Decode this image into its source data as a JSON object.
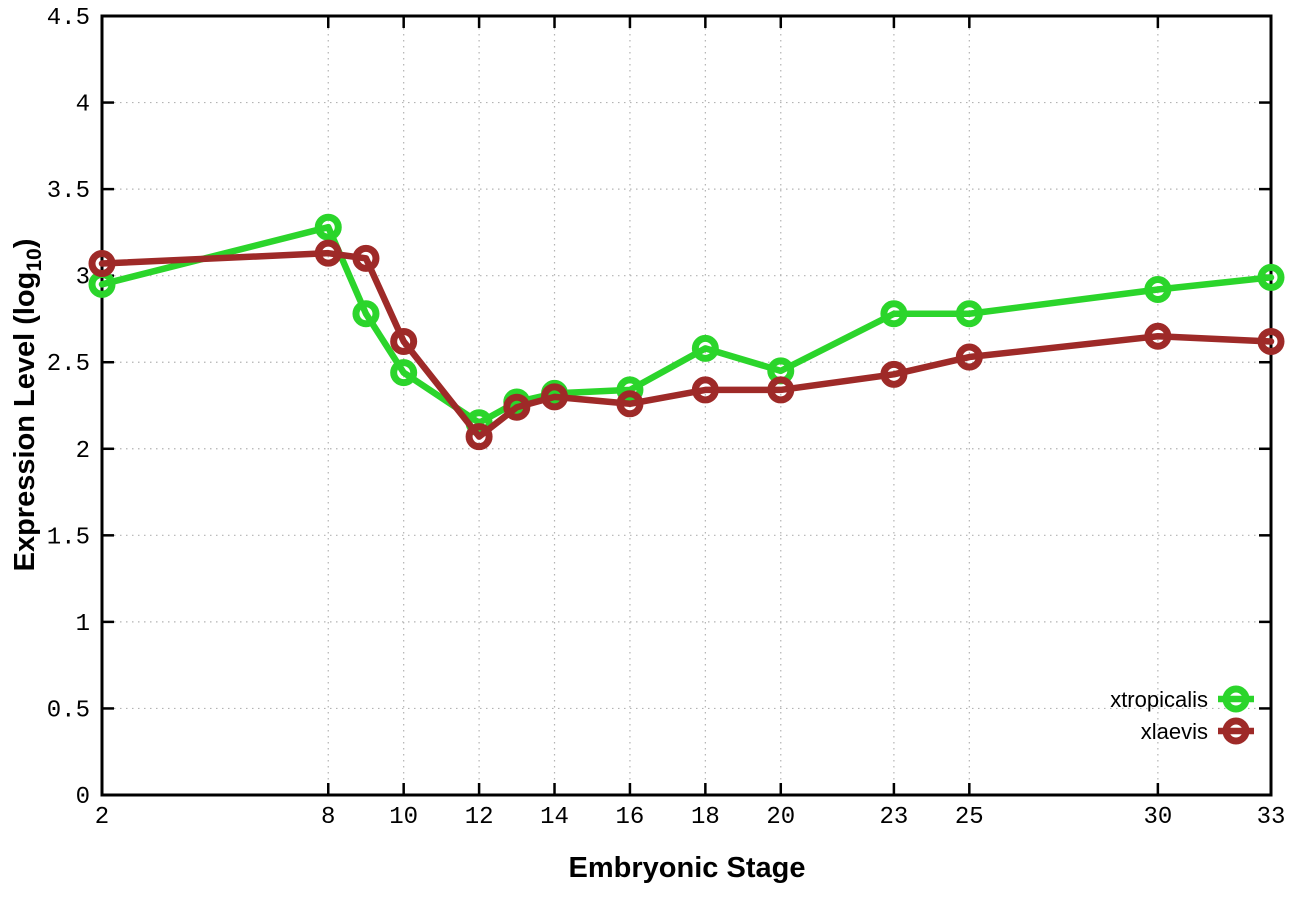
{
  "chart_data": {
    "type": "line",
    "title": "",
    "xlabel": "Embryonic Stage",
    "ylabel": "Expression Level (log10)",
    "ylabel_main": "Expression Level (log",
    "ylabel_sub": "10",
    "ylabel_close": ")",
    "xlim": [
      2,
      33
    ],
    "ylim": [
      0,
      4.5
    ],
    "xticks": [
      2,
      8,
      10,
      12,
      14,
      16,
      18,
      20,
      23,
      25,
      30,
      33
    ],
    "yticks": [
      0,
      0.5,
      1,
      1.5,
      2,
      2.5,
      3,
      3.5,
      4,
      4.5
    ],
    "grid": true,
    "legend_position": "bottom-right",
    "x": [
      2,
      8,
      9,
      10,
      12,
      13,
      14,
      16,
      18,
      20,
      23,
      25,
      30,
      33
    ],
    "series": [
      {
        "name": "xtropicalis",
        "color": "#2bd52b",
        "values": [
          2.95,
          3.28,
          2.78,
          2.44,
          2.15,
          2.27,
          2.32,
          2.34,
          2.58,
          2.45,
          2.78,
          2.78,
          2.92,
          2.99
        ]
      },
      {
        "name": "xlaevis",
        "color": "#9e2a28",
        "values": [
          3.07,
          3.13,
          3.1,
          2.62,
          2.07,
          2.24,
          2.3,
          2.26,
          2.34,
          2.34,
          2.43,
          2.53,
          2.65,
          2.62
        ]
      }
    ],
    "colors": {
      "axis": "#000000",
      "grid": "#b3b3b3",
      "background": "#ffffff"
    }
  }
}
